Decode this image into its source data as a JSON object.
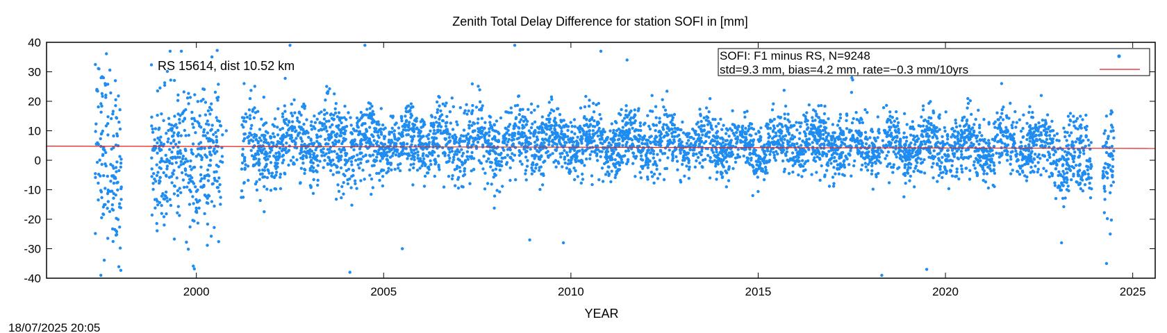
{
  "page": {
    "timestamp": "18/07/2025 20:05"
  },
  "chart_data": {
    "type": "scatter",
    "title": "Zenith Total Delay Difference for station SOFI in [mm]",
    "xlabel": "YEAR",
    "ylabel": "",
    "xlim": [
      1996.0,
      2025.6
    ],
    "ylim": [
      -40,
      40
    ],
    "x_ticks": [
      2000,
      2005,
      2010,
      2015,
      2020,
      2025
    ],
    "y_ticks": [
      -40,
      -30,
      -20,
      -10,
      0,
      10,
      20,
      30,
      40
    ],
    "grid": false,
    "legend_position": "top-right",
    "annotation": "RS 15614, dist 10.52 km",
    "colors": {
      "points": "#1e8cf0",
      "trend": "#e0201a",
      "frame": "#000000"
    },
    "series": [
      {
        "name": "SOFI: F1 minus RS, N=9248",
        "kind": "points",
        "n": 9248,
        "epochs": [
          {
            "x_start": 1997.3,
            "x_end": 1998.0,
            "center": 0,
            "sd": 18
          },
          {
            "x_start": 1998.8,
            "x_end": 2000.7,
            "center": 0,
            "sd": 14
          },
          {
            "x_start": 2001.2,
            "x_end": 2001.9,
            "center": 3,
            "sd": 9
          },
          {
            "x_start": 2001.9,
            "x_end": 2004.5,
            "center": 5,
            "sd": 8
          },
          {
            "x_start": 2004.5,
            "x_end": 2009.5,
            "center": 6,
            "sd": 7
          },
          {
            "x_start": 2009.5,
            "x_end": 2014.0,
            "center": 6,
            "sd": 6
          },
          {
            "x_start": 2014.0,
            "x_end": 2019.5,
            "center": 5,
            "sd": 6
          },
          {
            "x_start": 2019.5,
            "x_end": 2022.9,
            "center": 5,
            "sd": 6
          },
          {
            "x_start": 2022.9,
            "x_end": 2023.9,
            "center": 0,
            "sd": 8
          },
          {
            "x_start": 2024.2,
            "x_end": 2024.5,
            "center": 0,
            "sd": 9
          }
        ],
        "outliers": [
          [
            1997.4,
            31
          ],
          [
            1997.45,
            -39
          ],
          [
            1999.3,
            37
          ],
          [
            1999.6,
            37
          ],
          [
            2000.8,
            10
          ],
          [
            2002.5,
            39
          ],
          [
            2004.5,
            39
          ],
          [
            2004.1,
            -38
          ],
          [
            2005.5,
            -30
          ],
          [
            2008.5,
            39
          ],
          [
            2010.8,
            37
          ],
          [
            2008.9,
            -27
          ],
          [
            2009.8,
            -28
          ],
          [
            2011.5,
            34
          ],
          [
            2017.5,
            28
          ],
          [
            2018.3,
            -39
          ],
          [
            2019.5,
            -37
          ],
          [
            2021.5,
            26
          ],
          [
            2023.1,
            -28
          ],
          [
            2024.3,
            -35
          ],
          [
            2024.4,
            -25
          ],
          [
            2024.3,
            15
          ]
        ]
      },
      {
        "name": "std=9.3 mm, bias=4.2 mm, rate=−0.3 mm/10yrs",
        "kind": "line",
        "x": [
          1996.0,
          2025.6
        ],
        "y": [
          4.8,
          4.0
        ]
      }
    ]
  }
}
